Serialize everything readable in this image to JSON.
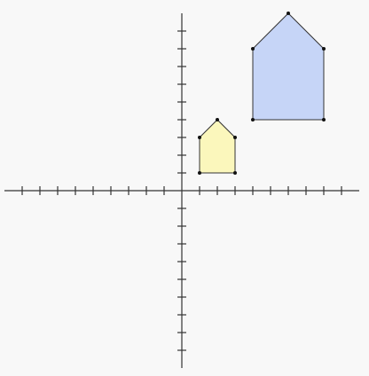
{
  "diagram": {
    "type": "coordinate-plane",
    "x_range": [
      -10,
      10
    ],
    "y_range": [
      -10,
      10
    ],
    "tick_step": 1,
    "axis_color": "#333333",
    "background": "#f8f8f8"
  },
  "shapes": [
    {
      "name": "small-pentagon",
      "kind": "house-pentagon",
      "fill": "#fbf7bc",
      "stroke": "#333333",
      "vertices": [
        [
          1,
          1
        ],
        [
          3,
          1
        ],
        [
          3,
          3
        ],
        [
          2,
          4
        ],
        [
          1,
          3
        ]
      ]
    },
    {
      "name": "large-pentagon",
      "kind": "house-pentagon",
      "fill": "#c6d5f7",
      "stroke": "#333333",
      "vertices": [
        [
          4,
          4
        ],
        [
          8,
          4
        ],
        [
          8,
          8
        ],
        [
          6,
          10
        ],
        [
          4,
          8
        ]
      ]
    }
  ]
}
